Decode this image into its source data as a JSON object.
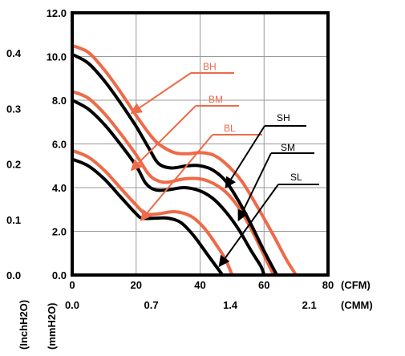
{
  "chart_data": {
    "type": "line",
    "title": "",
    "x_axis": {
      "primary": {
        "ticks": [
          "0",
          "20",
          "40",
          "60",
          "80"
        ],
        "unit": "(CFM)",
        "range": [
          0,
          80
        ]
      },
      "secondary": {
        "ticks": [
          "0.0",
          "0.7",
          "1.4",
          "2.1"
        ],
        "unit": "(CMM)"
      }
    },
    "y_axis": {
      "primary": {
        "ticks": [
          "0.0",
          "2.0",
          "4.0",
          "6.0",
          "8.0",
          "10.0",
          "12.0"
        ],
        "unit": "(mmH2O)",
        "range": [
          0,
          12
        ]
      },
      "secondary": {
        "ticks": [
          "0.0",
          "0.1",
          "0.2",
          "0.3",
          "0.4"
        ],
        "unit": "(InchH2O)"
      }
    },
    "grid": true,
    "colors": {
      "orange": "#ee6a48",
      "black": "#000000"
    },
    "series": [
      {
        "name": "BH",
        "color": "#ee6a48",
        "points": [
          [
            0,
            10.5
          ],
          [
            5,
            10.2
          ],
          [
            10,
            9.4
          ],
          [
            15,
            8.4
          ],
          [
            20,
            7.3
          ],
          [
            25,
            6.3
          ],
          [
            28,
            5.9
          ],
          [
            32,
            5.6
          ],
          [
            36,
            5.55
          ],
          [
            40,
            5.6
          ],
          [
            44,
            5.5
          ],
          [
            48,
            5.1
          ],
          [
            53,
            4.3
          ],
          [
            58,
            3.1
          ],
          [
            63,
            1.8
          ],
          [
            67,
            0.7
          ],
          [
            70,
            0.0
          ]
        ]
      },
      {
        "name": "BM",
        "color": "#ee6a48",
        "points": [
          [
            0,
            8.4
          ],
          [
            5,
            8.1
          ],
          [
            10,
            7.4
          ],
          [
            15,
            6.5
          ],
          [
            20,
            5.5
          ],
          [
            24,
            4.6
          ],
          [
            27,
            4.3
          ],
          [
            30,
            4.25
          ],
          [
            35,
            4.4
          ],
          [
            40,
            4.4
          ],
          [
            44,
            4.2
          ],
          [
            48,
            3.8
          ],
          [
            52,
            3.1
          ],
          [
            56,
            2.1
          ],
          [
            60,
            0.9
          ],
          [
            63,
            0.0
          ]
        ]
      },
      {
        "name": "BL",
        "color": "#ee6a48",
        "points": [
          [
            0,
            5.7
          ],
          [
            5,
            5.4
          ],
          [
            10,
            4.8
          ],
          [
            15,
            4.0
          ],
          [
            20,
            3.2
          ],
          [
            23,
            2.8
          ],
          [
            27,
            2.8
          ],
          [
            32,
            2.9
          ],
          [
            37,
            2.7
          ],
          [
            41,
            2.2
          ],
          [
            45,
            1.4
          ],
          [
            48,
            0.7
          ],
          [
            50,
            0.0
          ]
        ]
      },
      {
        "name": "SH",
        "color": "#000000",
        "points": [
          [
            0,
            10.1
          ],
          [
            5,
            9.7
          ],
          [
            10,
            8.9
          ],
          [
            15,
            7.9
          ],
          [
            20,
            6.8
          ],
          [
            24,
            5.8
          ],
          [
            27,
            5.1
          ],
          [
            31,
            4.9
          ],
          [
            36,
            5.0
          ],
          [
            40,
            5.0
          ],
          [
            44,
            4.8
          ],
          [
            48,
            4.3
          ],
          [
            52,
            3.4
          ],
          [
            56,
            2.3
          ],
          [
            60,
            1.1
          ],
          [
            64,
            0.0
          ]
        ]
      },
      {
        "name": "SM",
        "color": "#000000",
        "points": [
          [
            0,
            8.0
          ],
          [
            5,
            7.6
          ],
          [
            10,
            6.9
          ],
          [
            15,
            6.0
          ],
          [
            20,
            5.0
          ],
          [
            23,
            4.2
          ],
          [
            26,
            3.9
          ],
          [
            30,
            3.9
          ],
          [
            35,
            4.0
          ],
          [
            40,
            3.85
          ],
          [
            44,
            3.5
          ],
          [
            48,
            2.9
          ],
          [
            52,
            2.1
          ],
          [
            56,
            1.1
          ],
          [
            59,
            0.4
          ],
          [
            60,
            0.0
          ]
        ]
      },
      {
        "name": "SL",
        "color": "#000000",
        "points": [
          [
            0,
            5.3
          ],
          [
            5,
            5.0
          ],
          [
            10,
            4.4
          ],
          [
            15,
            3.6
          ],
          [
            20,
            2.8
          ],
          [
            22,
            2.6
          ],
          [
            26,
            2.6
          ],
          [
            30,
            2.6
          ],
          [
            34,
            2.4
          ],
          [
            38,
            1.8
          ],
          [
            42,
            1.0
          ],
          [
            45,
            0.4
          ],
          [
            47,
            0.0
          ]
        ]
      }
    ],
    "labels": [
      {
        "name": "BH",
        "text": "BH",
        "color": "#ee6a48"
      },
      {
        "name": "BM",
        "text": "BM",
        "color": "#ee6a48"
      },
      {
        "name": "BL",
        "text": "BL",
        "color": "#ee6a48"
      },
      {
        "name": "SH",
        "text": "SH",
        "color": "#000000"
      },
      {
        "name": "SM",
        "text": "SM",
        "color": "#000000"
      },
      {
        "name": "SL",
        "text": "SL",
        "color": "#000000"
      }
    ]
  }
}
